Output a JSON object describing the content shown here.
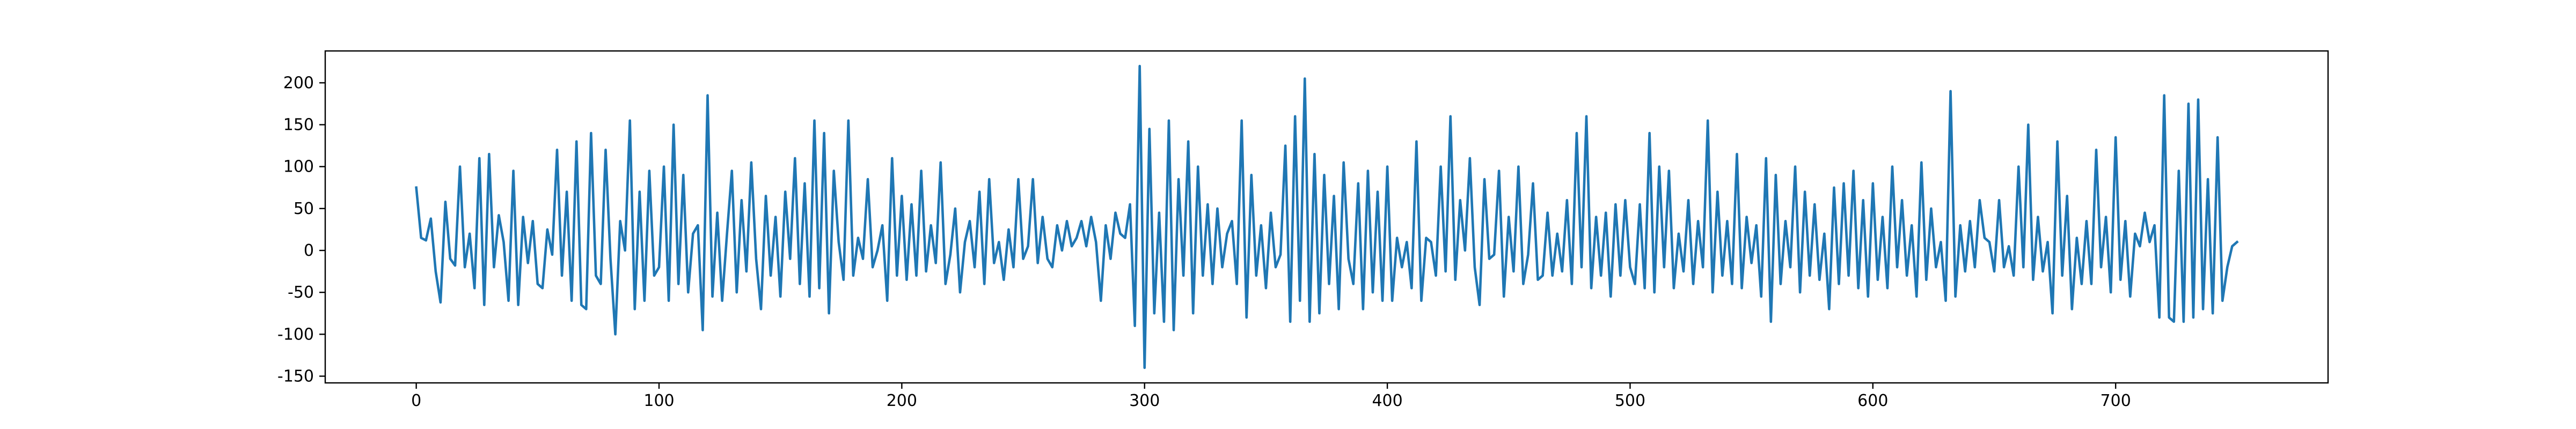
{
  "chart_data": {
    "type": "line",
    "color": "#1f77b4",
    "xlim": [
      -37.5,
      787.5
    ],
    "xticks": [
      0,
      100,
      200,
      300,
      400,
      500,
      600,
      700
    ],
    "ylim": [
      -158,
      238
    ],
    "yticks": [
      -150,
      -100,
      -50,
      0,
      50,
      100,
      150,
      200
    ],
    "x": [
      0,
      2,
      4,
      6,
      8,
      10,
      12,
      14,
      16,
      18,
      20,
      22,
      24,
      26,
      28,
      30,
      32,
      34,
      36,
      38,
      40,
      42,
      44,
      46,
      48,
      50,
      52,
      54,
      56,
      58,
      60,
      62,
      64,
      66,
      68,
      70,
      72,
      74,
      76,
      78,
      80,
      82,
      84,
      86,
      88,
      90,
      92,
      94,
      96,
      98,
      100,
      102,
      104,
      106,
      108,
      110,
      112,
      114,
      116,
      118,
      120,
      122,
      124,
      126,
      128,
      130,
      132,
      134,
      136,
      138,
      140,
      142,
      144,
      146,
      148,
      150,
      152,
      154,
      156,
      158,
      160,
      162,
      164,
      166,
      168,
      170,
      172,
      174,
      176,
      178,
      180,
      182,
      184,
      186,
      188,
      190,
      192,
      194,
      196,
      198,
      200,
      202,
      204,
      206,
      208,
      210,
      212,
      214,
      216,
      218,
      220,
      222,
      224,
      226,
      228,
      230,
      232,
      234,
      236,
      238,
      240,
      242,
      244,
      246,
      248,
      250,
      252,
      254,
      256,
      258,
      260,
      262,
      264,
      266,
      268,
      270,
      272,
      274,
      276,
      278,
      280,
      282,
      284,
      286,
      288,
      290,
      292,
      294,
      296,
      298,
      300,
      302,
      304,
      306,
      308,
      310,
      312,
      314,
      316,
      318,
      320,
      322,
      324,
      326,
      328,
      330,
      332,
      334,
      336,
      338,
      340,
      342,
      344,
      346,
      348,
      350,
      352,
      354,
      356,
      358,
      360,
      362,
      364,
      366,
      368,
      370,
      372,
      374,
      376,
      378,
      380,
      382,
      384,
      386,
      388,
      390,
      392,
      394,
      396,
      398,
      400,
      402,
      404,
      406,
      408,
      410,
      412,
      414,
      416,
      418,
      420,
      422,
      424,
      426,
      428,
      430,
      432,
      434,
      436,
      438,
      440,
      442,
      444,
      446,
      448,
      450,
      452,
      454,
      456,
      458,
      460,
      462,
      464,
      466,
      468,
      470,
      472,
      474,
      476,
      478,
      480,
      482,
      484,
      486,
      488,
      490,
      492,
      494,
      496,
      498,
      500,
      502,
      504,
      506,
      508,
      510,
      512,
      514,
      516,
      518,
      520,
      522,
      524,
      526,
      528,
      530,
      532,
      534,
      536,
      538,
      540,
      542,
      544,
      546,
      548,
      550,
      552,
      554,
      556,
      558,
      560,
      562,
      564,
      566,
      568,
      570,
      572,
      574,
      576,
      578,
      580,
      582,
      584,
      586,
      588,
      590,
      592,
      594,
      596,
      598,
      600,
      602,
      604,
      606,
      608,
      610,
      612,
      614,
      616,
      618,
      620,
      622,
      624,
      626,
      628,
      630,
      632,
      634,
      636,
      638,
      640,
      642,
      644,
      646,
      648,
      650,
      652,
      654,
      656,
      658,
      660,
      662,
      664,
      666,
      668,
      670,
      672,
      674,
      676,
      678,
      680,
      682,
      684,
      686,
      688,
      690,
      692,
      694,
      696,
      698,
      700,
      702,
      704,
      706,
      708,
      710,
      712,
      714,
      716,
      718,
      720,
      722,
      724,
      726,
      728,
      730,
      732,
      734,
      736,
      738,
      740,
      742,
      744,
      746,
      748,
      750
    ],
    "values": [
      75,
      15,
      12,
      38,
      -25,
      -62,
      58,
      -10,
      -18,
      100,
      -20,
      20,
      -45,
      110,
      -65,
      115,
      -20,
      42,
      10,
      -60,
      95,
      -65,
      40,
      -15,
      35,
      -40,
      -45,
      25,
      -5,
      120,
      -30,
      70,
      -60,
      130,
      -65,
      -70,
      140,
      -30,
      -40,
      120,
      -10,
      -100,
      35,
      0,
      155,
      -70,
      70,
      -60,
      95,
      -30,
      -20,
      100,
      -60,
      150,
      -40,
      90,
      -50,
      20,
      30,
      -95,
      185,
      -55,
      45,
      -60,
      20,
      95,
      -50,
      60,
      -25,
      105,
      -10,
      -70,
      65,
      -30,
      40,
      -55,
      70,
      -10,
      110,
      -40,
      80,
      -55,
      155,
      -45,
      140,
      -75,
      95,
      10,
      -35,
      155,
      -30,
      15,
      -10,
      85,
      -20,
      0,
      30,
      -60,
      110,
      -30,
      65,
      -35,
      55,
      -30,
      95,
      -25,
      30,
      -15,
      105,
      -40,
      -5,
      50,
      -50,
      10,
      35,
      -20,
      70,
      -40,
      85,
      -15,
      10,
      -35,
      25,
      -20,
      85,
      -10,
      5,
      85,
      -15,
      40,
      -10,
      -20,
      30,
      0,
      35,
      5,
      15,
      35,
      5,
      40,
      10,
      -60,
      30,
      -10,
      45,
      20,
      15,
      55,
      -90,
      220,
      -140,
      145,
      -75,
      45,
      -85,
      155,
      -95,
      85,
      -30,
      130,
      -75,
      100,
      -30,
      55,
      -40,
      50,
      -20,
      20,
      35,
      -40,
      155,
      -80,
      90,
      -30,
      30,
      -45,
      45,
      -20,
      -5,
      125,
      -85,
      160,
      -60,
      205,
      -85,
      115,
      -75,
      90,
      -40,
      65,
      -70,
      105,
      -10,
      -40,
      80,
      -70,
      95,
      -50,
      70,
      -60,
      100,
      -60,
      15,
      -20,
      10,
      -45,
      130,
      -60,
      15,
      10,
      -30,
      100,
      -25,
      160,
      -35,
      60,
      0,
      110,
      -20,
      -65,
      85,
      -10,
      -5,
      95,
      -55,
      40,
      -25,
      100,
      -40,
      -5,
      80,
      -35,
      -30,
      45,
      -30,
      20,
      -25,
      60,
      -40,
      140,
      -20,
      160,
      -45,
      40,
      -30,
      45,
      -55,
      55,
      -30,
      60,
      -20,
      -40,
      55,
      -45,
      140,
      -50,
      100,
      -20,
      95,
      -45,
      20,
      -25,
      60,
      -40,
      35,
      -20,
      155,
      -50,
      70,
      -30,
      35,
      -40,
      115,
      -45,
      40,
      -15,
      30,
      -55,
      110,
      -85,
      90,
      -40,
      35,
      -20,
      100,
      -50,
      70,
      -30,
      55,
      -35,
      20,
      -70,
      75,
      -40,
      80,
      -30,
      95,
      -45,
      60,
      -55,
      80,
      -35,
      40,
      -45,
      100,
      -20,
      60,
      -30,
      30,
      -55,
      105,
      -35,
      50,
      -20,
      10,
      -60,
      190,
      -55,
      30,
      -25,
      35,
      -20,
      60,
      15,
      10,
      -25,
      60,
      -20,
      5,
      -30,
      100,
      -20,
      150,
      -35,
      40,
      -25,
      10,
      -75,
      130,
      -30,
      65,
      -70,
      15,
      -40,
      35,
      -40,
      120,
      -20,
      40,
      -50,
      135,
      -35,
      35,
      -55,
      20,
      5,
      45,
      10,
      30,
      -80,
      185,
      -80,
      -85,
      95,
      -85,
      175,
      -80,
      180,
      -70,
      85,
      -75,
      135,
      -60,
      -20,
      5,
      10
    ]
  }
}
